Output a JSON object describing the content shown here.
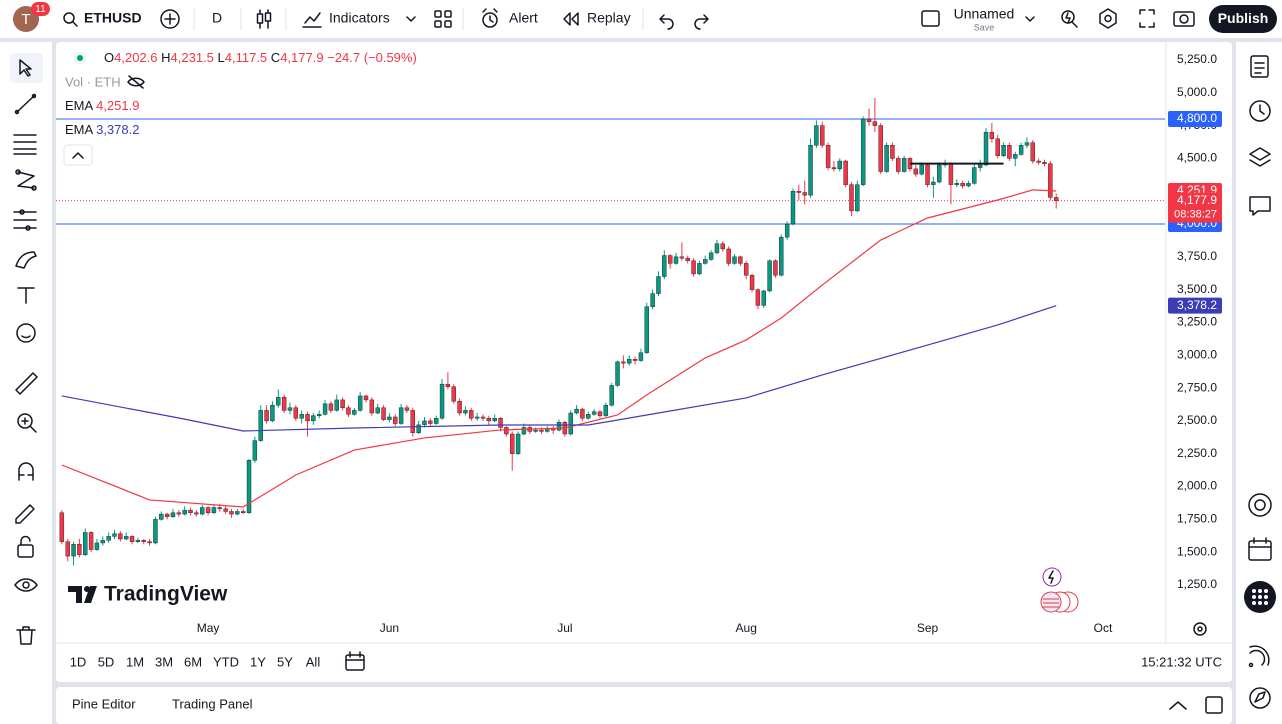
{
  "topbar": {
    "avatar": "T",
    "badge": "11",
    "symbol": "ETHUSD",
    "interval": "D",
    "indicators": "Indicators",
    "alert": "Alert",
    "replay": "Replay",
    "layout_name": "Unnamed",
    "save": "Save",
    "publish": "Publish"
  },
  "legend": {
    "ohlc": [
      {
        "label": "O",
        "value": "4,202.6"
      },
      {
        "label": "H",
        "value": "4,231.5"
      },
      {
        "label": "L",
        "value": "4,117.5"
      },
      {
        "label": "C",
        "value": "4,177.9"
      }
    ],
    "change": "−24.7 (−0.59%)",
    "volume": "Vol · ETH"
  },
  "chart_data": {
    "type": "candlestick",
    "up_color": "#089981",
    "down_color": "#f23645",
    "ohlc": [
      [
        1800,
        1820,
        1560,
        1580
      ],
      [
        1580,
        1600,
        1430,
        1470
      ],
      [
        1470,
        1580,
        1400,
        1560
      ],
      [
        1560,
        1600,
        1460,
        1480
      ],
      [
        1480,
        1680,
        1470,
        1650
      ],
      [
        1650,
        1660,
        1500,
        1520
      ],
      [
        1520,
        1600,
        1510,
        1570
      ],
      [
        1570,
        1620,
        1550,
        1590
      ],
      [
        1590,
        1650,
        1570,
        1620
      ],
      [
        1620,
        1670,
        1600,
        1640
      ],
      [
        1640,
        1660,
        1580,
        1600
      ],
      [
        1600,
        1650,
        1590,
        1620
      ],
      [
        1620,
        1630,
        1560,
        1580
      ],
      [
        1580,
        1610,
        1570,
        1590
      ],
      [
        1590,
        1600,
        1560,
        1580
      ],
      [
        1580,
        1600,
        1550,
        1570
      ],
      [
        1570,
        1770,
        1560,
        1750
      ],
      [
        1750,
        1810,
        1740,
        1790
      ],
      [
        1790,
        1800,
        1750,
        1770
      ],
      [
        1770,
        1830,
        1760,
        1800
      ],
      [
        1800,
        1820,
        1770,
        1790
      ],
      [
        1790,
        1850,
        1780,
        1820
      ],
      [
        1820,
        1840,
        1780,
        1800
      ],
      [
        1800,
        1820,
        1770,
        1790
      ],
      [
        1790,
        1860,
        1780,
        1840
      ],
      [
        1840,
        1850,
        1780,
        1800
      ],
      [
        1800,
        1860,
        1790,
        1840
      ],
      [
        1840,
        1870,
        1810,
        1830
      ],
      [
        1830,
        1850,
        1790,
        1810
      ],
      [
        1810,
        1830,
        1760,
        1790
      ],
      [
        1790,
        1830,
        1780,
        1810
      ],
      [
        1810,
        1830,
        1790,
        1800
      ],
      [
        1800,
        2210,
        1790,
        2200
      ],
      [
        2200,
        2380,
        2180,
        2350
      ],
      [
        2350,
        2620,
        2340,
        2580
      ],
      [
        2580,
        2620,
        2480,
        2500
      ],
      [
        2500,
        2650,
        2490,
        2620
      ],
      [
        2620,
        2740,
        2600,
        2680
      ],
      [
        2680,
        2700,
        2560,
        2580
      ],
      [
        2580,
        2640,
        2550,
        2600
      ],
      [
        2600,
        2620,
        2500,
        2520
      ],
      [
        2520,
        2580,
        2480,
        2550
      ],
      [
        2550,
        2570,
        2380,
        2500
      ],
      [
        2500,
        2560,
        2470,
        2540
      ],
      [
        2540,
        2580,
        2520,
        2550
      ],
      [
        2550,
        2660,
        2540,
        2630
      ],
      [
        2630,
        2650,
        2560,
        2580
      ],
      [
        2580,
        2700,
        2570,
        2660
      ],
      [
        2660,
        2680,
        2580,
        2600
      ],
      [
        2600,
        2620,
        2530,
        2550
      ],
      [
        2550,
        2600,
        2540,
        2580
      ],
      [
        2580,
        2720,
        2570,
        2690
      ],
      [
        2690,
        2700,
        2640,
        2660
      ],
      [
        2660,
        2680,
        2540,
        2560
      ],
      [
        2560,
        2630,
        2550,
        2600
      ],
      [
        2600,
        2620,
        2500,
        2510
      ],
      [
        2510,
        2560,
        2490,
        2530
      ],
      [
        2530,
        2550,
        2460,
        2480
      ],
      [
        2480,
        2630,
        2470,
        2600
      ],
      [
        2600,
        2620,
        2560,
        2580
      ],
      [
        2580,
        2600,
        2380,
        2410
      ],
      [
        2410,
        2500,
        2400,
        2470
      ],
      [
        2470,
        2530,
        2450,
        2500
      ],
      [
        2500,
        2520,
        2460,
        2480
      ],
      [
        2480,
        2540,
        2470,
        2520
      ],
      [
        2520,
        2820,
        2510,
        2780
      ],
      [
        2780,
        2870,
        2740,
        2760
      ],
      [
        2760,
        2780,
        2630,
        2650
      ],
      [
        2650,
        2670,
        2540,
        2560
      ],
      [
        2560,
        2610,
        2540,
        2580
      ],
      [
        2580,
        2600,
        2500,
        2520
      ],
      [
        2520,
        2560,
        2500,
        2530
      ],
      [
        2530,
        2550,
        2500,
        2520
      ],
      [
        2520,
        2540,
        2470,
        2500
      ],
      [
        2500,
        2550,
        2490,
        2520
      ],
      [
        2520,
        2530,
        2420,
        2450
      ],
      [
        2450,
        2460,
        2380,
        2400
      ],
      [
        2400,
        2420,
        2120,
        2250
      ],
      [
        2250,
        2420,
        2240,
        2400
      ],
      [
        2400,
        2480,
        2390,
        2450
      ],
      [
        2450,
        2470,
        2400,
        2420
      ],
      [
        2420,
        2450,
        2410,
        2430
      ],
      [
        2430,
        2450,
        2400,
        2420
      ],
      [
        2420,
        2460,
        2410,
        2440
      ],
      [
        2440,
        2460,
        2400,
        2430
      ],
      [
        2430,
        2510,
        2420,
        2490
      ],
      [
        2490,
        2500,
        2380,
        2400
      ],
      [
        2400,
        2580,
        2390,
        2560
      ],
      [
        2560,
        2620,
        2550,
        2590
      ],
      [
        2590,
        2600,
        2500,
        2520
      ],
      [
        2520,
        2570,
        2510,
        2550
      ],
      [
        2550,
        2590,
        2540,
        2570
      ],
      [
        2570,
        2580,
        2520,
        2540
      ],
      [
        2540,
        2640,
        2530,
        2620
      ],
      [
        2620,
        2790,
        2610,
        2770
      ],
      [
        2770,
        2960,
        2760,
        2950
      ],
      [
        2950,
        3000,
        2900,
        2940
      ],
      [
        2940,
        3000,
        2920,
        2970
      ],
      [
        2970,
        2990,
        2930,
        2960
      ],
      [
        2960,
        3050,
        2950,
        3020
      ],
      [
        3020,
        3400,
        3010,
        3370
      ],
      [
        3370,
        3500,
        3350,
        3470
      ],
      [
        3470,
        3640,
        3450,
        3600
      ],
      [
        3600,
        3800,
        3580,
        3760
      ],
      [
        3760,
        3770,
        3660,
        3700
      ],
      [
        3700,
        3780,
        3690,
        3750
      ],
      [
        3750,
        3860,
        3720,
        3740
      ],
      [
        3740,
        3760,
        3700,
        3720
      ],
      [
        3720,
        3740,
        3600,
        3620
      ],
      [
        3620,
        3720,
        3610,
        3700
      ],
      [
        3700,
        3760,
        3690,
        3730
      ],
      [
        3730,
        3800,
        3720,
        3780
      ],
      [
        3780,
        3880,
        3770,
        3850
      ],
      [
        3850,
        3870,
        3790,
        3810
      ],
      [
        3810,
        3830,
        3680,
        3700
      ],
      [
        3700,
        3770,
        3690,
        3750
      ],
      [
        3750,
        3760,
        3680,
        3700
      ],
      [
        3700,
        3720,
        3580,
        3610
      ],
      [
        3610,
        3620,
        3480,
        3500
      ],
      [
        3500,
        3510,
        3350,
        3380
      ],
      [
        3380,
        3500,
        3360,
        3490
      ],
      [
        3490,
        3730,
        3480,
        3720
      ],
      [
        3720,
        3730,
        3590,
        3610
      ],
      [
        3610,
        3920,
        3600,
        3900
      ],
      [
        3900,
        4020,
        3880,
        4000
      ],
      [
        4000,
        4270,
        3990,
        4250
      ],
      [
        4250,
        4300,
        4180,
        4240
      ],
      [
        4240,
        4330,
        4150,
        4220
      ],
      [
        4220,
        4650,
        4200,
        4600
      ],
      [
        4600,
        4790,
        4580,
        4750
      ],
      [
        4750,
        4780,
        4580,
        4600
      ],
      [
        4600,
        4620,
        4410,
        4430
      ],
      [
        4430,
        4480,
        4400,
        4420
      ],
      [
        4420,
        4500,
        4400,
        4480
      ],
      [
        4480,
        4490,
        4280,
        4300
      ],
      [
        4300,
        4320,
        4060,
        4100
      ],
      [
        4100,
        4330,
        4090,
        4300
      ],
      [
        4300,
        4820,
        4290,
        4800
      ],
      [
        4800,
        4880,
        4750,
        4780
      ],
      [
        4780,
        4960,
        4700,
        4750
      ],
      [
        4750,
        4770,
        4380,
        4400
      ],
      [
        4400,
        4620,
        4390,
        4600
      ],
      [
        4600,
        4620,
        4480,
        4500
      ],
      [
        4500,
        4520,
        4380,
        4400
      ],
      [
        4400,
        4520,
        4390,
        4500
      ],
      [
        4500,
        4510,
        4400,
        4420
      ],
      [
        4420,
        4450,
        4360,
        4380
      ],
      [
        4380,
        4470,
        4370,
        4450
      ],
      [
        4450,
        4460,
        4280,
        4300
      ],
      [
        4300,
        4360,
        4200,
        4320
      ],
      [
        4320,
        4470,
        4310,
        4450
      ],
      [
        4450,
        4490,
        4430,
        4460
      ],
      [
        4460,
        4470,
        4150,
        4300
      ],
      [
        4300,
        4340,
        4280,
        4310
      ],
      [
        4310,
        4330,
        4270,
        4290
      ],
      [
        4290,
        4330,
        4280,
        4310
      ],
      [
        4310,
        4460,
        4300,
        4430
      ],
      [
        4430,
        4490,
        4400,
        4450
      ],
      [
        4450,
        4730,
        4440,
        4700
      ],
      [
        4700,
        4770,
        4620,
        4650
      ],
      [
        4650,
        4680,
        4500,
        4520
      ],
      [
        4520,
        4620,
        4510,
        4600
      ],
      [
        4600,
        4620,
        4480,
        4500
      ],
      [
        4500,
        4550,
        4440,
        4530
      ],
      [
        4530,
        4620,
        4520,
        4600
      ],
      [
        4600,
        4660,
        4580,
        4620
      ],
      [
        4620,
        4640,
        4460,
        4480
      ],
      [
        4480,
        4500,
        4450,
        4470
      ],
      [
        4470,
        4490,
        4440,
        4460
      ],
      [
        4460,
        4480,
        4180,
        4202.6
      ],
      [
        4202.6,
        4231.5,
        4117.5,
        4177.9
      ]
    ],
    "series": [
      {
        "name": "EMA",
        "color": "#f23645",
        "value_label": "4,251.9",
        "x": [
          0,
          15,
          31,
          40,
          50,
          62,
          75,
          86,
          95,
          100,
          110,
          117,
          123,
          130,
          140,
          148,
          160,
          166,
          170
        ],
        "values": [
          2164,
          1898,
          1844,
          2088,
          2278,
          2370,
          2431,
          2446,
          2545,
          2698,
          2980,
          3117,
          3284,
          3535,
          3878,
          4046,
          4183,
          4260,
          4251.9
        ]
      },
      {
        "name": "EMA",
        "color": "#3c3cb4",
        "value_label": "3,378.2",
        "x": [
          0,
          20,
          31,
          50,
          75,
          90,
          100,
          117,
          130,
          148,
          160,
          170
        ],
        "values": [
          2690,
          2522,
          2423,
          2446,
          2469,
          2469,
          2545,
          2675,
          2850,
          3078,
          3231,
          3378.2
        ]
      }
    ],
    "price_lines": [
      {
        "value": 4800,
        "label": "4,800.0",
        "color": "#2962ff"
      },
      {
        "value": 4000,
        "label": "4,000.0",
        "color": "#2962ff"
      }
    ],
    "current": {
      "value": 4177.9,
      "label": "4,177.9",
      "countdown": "08:38:27",
      "color": "#f23645"
    },
    "drawing": {
      "x": [
        145,
        161
      ],
      "y": 4460
    },
    "xlim": [
      -1,
      188.6
    ],
    "ylim": [
      1044,
      5364
    ],
    "xticks": [
      {
        "value": 25,
        "label": "May"
      },
      {
        "value": 56,
        "label": "Jun"
      },
      {
        "value": 86,
        "label": "Jul"
      },
      {
        "value": 117,
        "label": "Aug"
      },
      {
        "value": 148,
        "label": "Sep"
      },
      {
        "value": 178,
        "label": "Oct"
      }
    ],
    "yticks": [
      {
        "value": 1250,
        "label": "1,250.0"
      },
      {
        "value": 1500,
        "label": "1,500.0"
      },
      {
        "value": 1750,
        "label": "1,750.0"
      },
      {
        "value": 2000,
        "label": "2,000.0"
      },
      {
        "value": 2250,
        "label": "2,250.0"
      },
      {
        "value": 2500,
        "label": "2,500.0"
      },
      {
        "value": 2750,
        "label": "2,750.0"
      },
      {
        "value": 3000,
        "label": "3,000.0"
      },
      {
        "value": 3250,
        "label": "3,250.0"
      },
      {
        "value": 3500,
        "label": "3,500.0"
      },
      {
        "value": 3750,
        "label": "3,750.0"
      },
      {
        "value": 4000,
        "label": "4,000.0"
      },
      {
        "value": 4250,
        "label": "4,250.0"
      },
      {
        "value": 4500,
        "label": "4,500.0"
      },
      {
        "value": 4750,
        "label": "4,750.0"
      },
      {
        "value": 5000,
        "label": "5,000.0"
      },
      {
        "value": 5250,
        "label": "5,250.0"
      }
    ],
    "grid": false
  },
  "watermark": "TradingView",
  "timeframes": [
    "1D",
    "5D",
    "1M",
    "3M",
    "6M",
    "YTD",
    "1Y",
    "5Y",
    "All"
  ],
  "clock": "15:21:32 UTC",
  "bottom_tabs": [
    "Pine Editor",
    "Trading Panel"
  ]
}
